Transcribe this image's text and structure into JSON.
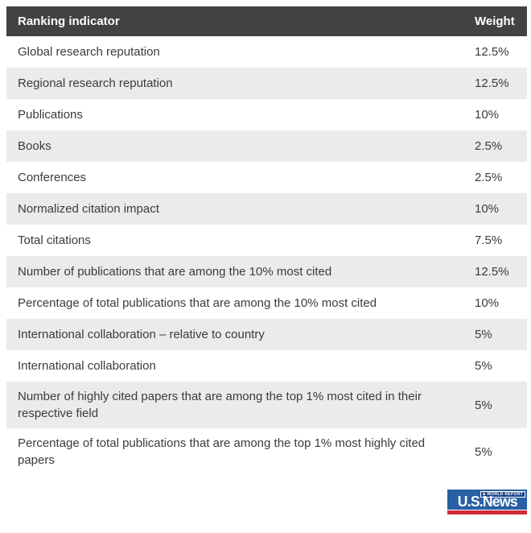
{
  "chart_data": {
    "type": "table",
    "columns": [
      "Ranking indicator",
      "Weight"
    ],
    "rows": [
      [
        "Global research reputation",
        "12.5%"
      ],
      [
        "Regional research reputation",
        "12.5%"
      ],
      [
        "Publications",
        "10%"
      ],
      [
        "Books",
        "2.5%"
      ],
      [
        "Conferences",
        "2.5%"
      ],
      [
        "Normalized citation impact",
        "10%"
      ],
      [
        "Total citations",
        "7.5%"
      ],
      [
        "Number of publications that are among the 10% most cited",
        "12.5%"
      ],
      [
        "Percentage of total publications that are among the 10% most cited",
        "10%"
      ],
      [
        "International collaboration – relative to country",
        "5%"
      ],
      [
        "International collaboration",
        "5%"
      ],
      [
        "Number of highly cited papers that are among the top 1% most cited in their respective field",
        "5%"
      ],
      [
        "Percentage of total publications that are among the top 1% most highly cited papers",
        "5%"
      ]
    ]
  },
  "logo": {
    "brand": "U.S.News",
    "tagline": "& WORLD REPORT"
  },
  "colors": {
    "header_bg": "#424242",
    "header_text": "#ffffff",
    "row_alt_bg": "#ebebeb",
    "row_bg": "#ffffff",
    "text": "#3b3b3b",
    "logo_blue": "#285fa5",
    "logo_dark_blue": "#1c4387",
    "logo_red": "#ce2a37"
  }
}
